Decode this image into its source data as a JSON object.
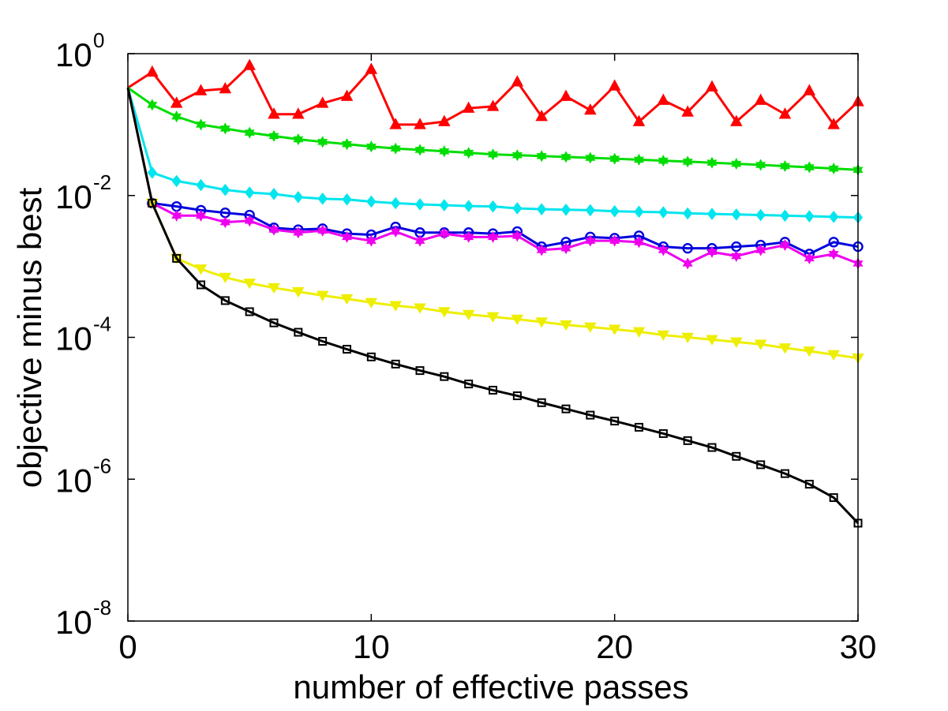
{
  "chart_data": {
    "type": "line",
    "title": "",
    "xlabel": "number of effective passes",
    "ylabel": "objective minus best",
    "xlim": [
      0,
      30
    ],
    "ylim": [
      1e-08,
      1
    ],
    "yscale": "log",
    "grid": false,
    "x_ticks": [
      {
        "value": 0,
        "label": "0"
      },
      {
        "value": 10,
        "label": "10"
      },
      {
        "value": 20,
        "label": "20"
      },
      {
        "value": 30,
        "label": "30"
      }
    ],
    "y_ticks": [
      {
        "value": 1,
        "base": "10",
        "exp": "0"
      },
      {
        "value": 0.01,
        "base": "10",
        "exp": "-2"
      },
      {
        "value": 0.0001,
        "base": "10",
        "exp": "-4"
      },
      {
        "value": 1e-06,
        "base": "10",
        "exp": "-6"
      },
      {
        "value": 1e-08,
        "base": "10",
        "exp": "-8"
      }
    ],
    "series": [
      {
        "name": "red-triangle",
        "color": "#ff0000",
        "marker": "triangle-up",
        "x": [
          0,
          1,
          2,
          3,
          4,
          5,
          6,
          7,
          8,
          9,
          10,
          11,
          12,
          13,
          14,
          15,
          16,
          17,
          18,
          19,
          20,
          21,
          22,
          23,
          24,
          25,
          26,
          27,
          28,
          29,
          30
        ],
        "values": [
          0.33,
          0.55,
          0.2,
          0.3,
          0.32,
          0.68,
          0.14,
          0.14,
          0.2,
          0.25,
          0.6,
          0.1,
          0.1,
          0.11,
          0.17,
          0.18,
          0.4,
          0.13,
          0.25,
          0.16,
          0.35,
          0.11,
          0.22,
          0.15,
          0.34,
          0.11,
          0.22,
          0.14,
          0.3,
          0.1,
          0.21
        ]
      },
      {
        "name": "green-star",
        "color": "#00dd00",
        "marker": "star",
        "x": [
          0,
          1,
          2,
          3,
          4,
          5,
          6,
          7,
          8,
          9,
          10,
          11,
          12,
          13,
          14,
          15,
          16,
          17,
          18,
          19,
          20,
          21,
          22,
          23,
          24,
          25,
          26,
          27,
          28,
          29,
          30
        ],
        "values": [
          0.33,
          0.19,
          0.13,
          0.1,
          0.088,
          0.077,
          0.069,
          0.062,
          0.057,
          0.053,
          0.049,
          0.046,
          0.044,
          0.042,
          0.04,
          0.038,
          0.037,
          0.036,
          0.035,
          0.034,
          0.033,
          0.032,
          0.031,
          0.03,
          0.029,
          0.028,
          0.027,
          0.026,
          0.025,
          0.024,
          0.023
        ]
      },
      {
        "name": "cyan-diamond",
        "color": "#00e5ee",
        "marker": "diamond",
        "x": [
          0,
          1,
          2,
          3,
          4,
          5,
          6,
          7,
          8,
          9,
          10,
          11,
          12,
          13,
          14,
          15,
          16,
          17,
          18,
          19,
          20,
          21,
          22,
          23,
          24,
          25,
          26,
          27,
          28,
          29,
          30
        ],
        "values": [
          0.33,
          0.021,
          0.016,
          0.014,
          0.012,
          0.011,
          0.0105,
          0.0095,
          0.009,
          0.0088,
          0.0082,
          0.0078,
          0.0075,
          0.0073,
          0.0071,
          0.007,
          0.0066,
          0.0064,
          0.0063,
          0.0062,
          0.006,
          0.0059,
          0.0058,
          0.0056,
          0.0055,
          0.0054,
          0.0053,
          0.0052,
          0.0051,
          0.005,
          0.0049
        ]
      },
      {
        "name": "blue-circle",
        "color": "#0000dd",
        "marker": "circle",
        "x": [
          0,
          1,
          2,
          3,
          4,
          5,
          6,
          7,
          8,
          9,
          10,
          11,
          12,
          13,
          14,
          15,
          16,
          17,
          18,
          19,
          20,
          21,
          22,
          23,
          24,
          25,
          26,
          27,
          28,
          29,
          30
        ],
        "values": [
          0.33,
          0.0078,
          0.007,
          0.0062,
          0.0057,
          0.0053,
          0.0035,
          0.0033,
          0.0034,
          0.0029,
          0.0028,
          0.0036,
          0.003,
          0.003,
          0.003,
          0.0029,
          0.0031,
          0.0019,
          0.0022,
          0.0026,
          0.0025,
          0.0027,
          0.0019,
          0.0018,
          0.0018,
          0.0019,
          0.002,
          0.0022,
          0.0015,
          0.0022,
          0.0019
        ]
      },
      {
        "name": "magenta-star",
        "color": "#ee00ee",
        "marker": "star",
        "x": [
          0,
          1,
          2,
          3,
          4,
          5,
          6,
          7,
          8,
          9,
          10,
          11,
          12,
          13,
          14,
          15,
          16,
          17,
          18,
          19,
          20,
          21,
          22,
          23,
          24,
          25,
          26,
          27,
          28,
          29,
          30
        ],
        "values": [
          0.33,
          0.0078,
          0.0052,
          0.0052,
          0.0042,
          0.0044,
          0.0033,
          0.003,
          0.0032,
          0.0026,
          0.0023,
          0.0031,
          0.0023,
          0.0029,
          0.0026,
          0.0026,
          0.0027,
          0.0017,
          0.0018,
          0.0023,
          0.0023,
          0.0022,
          0.0017,
          0.0011,
          0.0016,
          0.0014,
          0.0017,
          0.002,
          0.0013,
          0.0015,
          0.0011
        ]
      },
      {
        "name": "yellow-triangle-down",
        "color": "#eeee00",
        "marker": "triangle-down",
        "x": [
          0,
          1,
          2,
          3,
          4,
          5,
          6,
          7,
          8,
          9,
          10,
          11,
          12,
          13,
          14,
          15,
          16,
          17,
          18,
          19,
          20,
          21,
          22,
          23,
          24,
          25,
          26,
          27,
          28,
          29,
          30
        ],
        "values": [
          0.33,
          0.0078,
          0.0013,
          0.00092,
          0.0007,
          0.00058,
          0.0005,
          0.00044,
          0.00039,
          0.00035,
          0.00031,
          0.00028,
          0.00026,
          0.00023,
          0.00021,
          0.000195,
          0.00018,
          0.000165,
          0.00015,
          0.00014,
          0.00013,
          0.00012,
          0.000108,
          0.0001,
          9.3e-05,
          8.6e-05,
          8e-05,
          7.1e-05,
          6.4e-05,
          5.7e-05,
          5.1e-05
        ]
      },
      {
        "name": "black-square",
        "color": "#000000",
        "marker": "square",
        "x": [
          0,
          1,
          2,
          3,
          4,
          5,
          6,
          7,
          8,
          9,
          10,
          11,
          12,
          13,
          14,
          15,
          16,
          17,
          18,
          19,
          20,
          21,
          22,
          23,
          24,
          25,
          26,
          27,
          28,
          29,
          30
        ],
        "values": [
          0.33,
          0.0078,
          0.0013,
          0.00055,
          0.00033,
          0.00023,
          0.00016,
          0.000118,
          8.8e-05,
          6.8e-05,
          5.3e-05,
          4.2e-05,
          3.4e-05,
          2.8e-05,
          2.2e-05,
          1.8e-05,
          1.5e-05,
          1.2e-05,
          9.8e-06,
          8e-06,
          6.6e-06,
          5.4e-06,
          4.4e-06,
          3.5e-06,
          2.8e-06,
          2.1e-06,
          1.6e-06,
          1.2e-06,
          8.5e-07,
          5.5e-07,
          2.4e-07
        ]
      }
    ]
  }
}
